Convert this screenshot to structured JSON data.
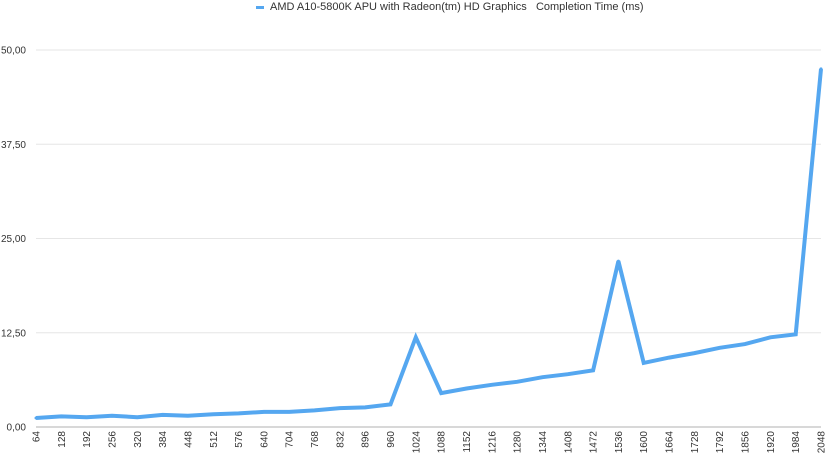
{
  "chart_data": {
    "type": "line",
    "series": [
      {
        "name": "AMD A10-5800K APU with Radeon(tm) HD Graphics   Completion Time (ms)",
        "color": "#55a7f0",
        "values": [
          1.2,
          1.4,
          1.3,
          1.5,
          1.3,
          1.6,
          1.5,
          1.7,
          1.8,
          2.0,
          2.0,
          2.2,
          2.5,
          2.6,
          3.0,
          11.9,
          4.5,
          5.1,
          5.6,
          6.0,
          6.6,
          7.0,
          7.5,
          22.0,
          8.5,
          9.2,
          9.8,
          10.5,
          11.0,
          11.9,
          12.3,
          47.5
        ]
      }
    ],
    "x": [
      "64",
      "128",
      "192",
      "256",
      "320",
      "384",
      "448",
      "512",
      "576",
      "640",
      "704",
      "768",
      "832",
      "896",
      "960",
      "1024",
      "1088",
      "1152",
      "1216",
      "1280",
      "1344",
      "1408",
      "1472",
      "1536",
      "1600",
      "1664",
      "1728",
      "1792",
      "1856",
      "1920",
      "1984",
      "2048"
    ],
    "yticks": [
      "0,00",
      "12,50",
      "25,00",
      "37,50",
      "50,00"
    ],
    "ylim": [
      0,
      50
    ],
    "grid": true,
    "legend_position": "top-center"
  }
}
